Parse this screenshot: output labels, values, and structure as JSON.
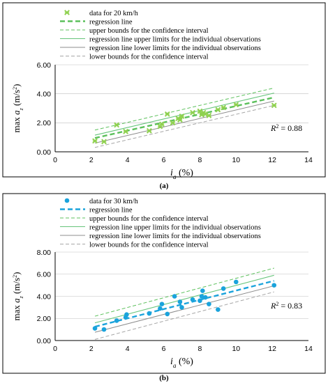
{
  "colors": {
    "green_marker": "#8fd14f",
    "green_dash": "#5cc05c",
    "green_solid": "#66c47a",
    "gray_solid": "#8c8c8c",
    "gray_dash": "#a6a6a6",
    "blue_marker": "#1aa3dc",
    "blue_dash": "#1aa3dc"
  },
  "chart_data": [
    {
      "type": "scatter",
      "caption": "(a)",
      "xlabel_main": "i",
      "xlabel_sub": "a",
      "xlabel_unit": " (%)",
      "ylabel_main": "max a",
      "ylabel_sub": "z",
      "ylabel_unit": " (m/s",
      "ylabel_sup": "2",
      "ylabel_close": ")",
      "xlim": [
        0,
        14
      ],
      "ylim": [
        0,
        6
      ],
      "xticks": [
        "0",
        "2",
        "4",
        "6",
        "8",
        "10",
        "12",
        "14"
      ],
      "yticks": [
        "0.00",
        "2.00",
        "4.00",
        "6.00"
      ],
      "r2_label": "R",
      "r2_sup": "2",
      "r2_value": " = 0.88",
      "legend": [
        "data for 20 km/h",
        "regression line",
        "upper bounds for the confidence interval",
        "regression line upper limits for the individual observations",
        "regression line lower limits for the individual observations",
        "lower bounds for the confidence interval"
      ],
      "points": [
        {
          "x": 2.2,
          "y": 0.75
        },
        {
          "x": 2.7,
          "y": 0.7
        },
        {
          "x": 3.4,
          "y": 1.85
        },
        {
          "x": 3.9,
          "y": 1.4
        },
        {
          "x": 5.2,
          "y": 1.45
        },
        {
          "x": 5.8,
          "y": 1.75
        },
        {
          "x": 5.9,
          "y": 1.9
        },
        {
          "x": 6.2,
          "y": 2.6
        },
        {
          "x": 6.5,
          "y": 2.0
        },
        {
          "x": 6.8,
          "y": 2.3
        },
        {
          "x": 6.9,
          "y": 2.2
        },
        {
          "x": 7.0,
          "y": 2.45
        },
        {
          "x": 7.6,
          "y": 2.7
        },
        {
          "x": 8.0,
          "y": 2.8
        },
        {
          "x": 8.1,
          "y": 2.55
        },
        {
          "x": 8.2,
          "y": 2.7
        },
        {
          "x": 8.3,
          "y": 2.6
        },
        {
          "x": 8.5,
          "y": 2.5
        },
        {
          "x": 9.0,
          "y": 2.9
        },
        {
          "x": 9.3,
          "y": 3.05
        },
        {
          "x": 10.0,
          "y": 3.25
        },
        {
          "x": 12.1,
          "y": 3.2
        }
      ],
      "lines": {
        "regression": [
          [
            2.2,
            0.95
          ],
          [
            12.1,
            3.75
          ]
        ],
        "confidence_upper": [
          [
            2.2,
            1.5
          ],
          [
            12.1,
            4.4
          ]
        ],
        "observation_upper": [
          [
            2.2,
            1.15
          ],
          [
            12.1,
            4.05
          ]
        ],
        "observation_lower": [
          [
            2.2,
            0.6
          ],
          [
            12.1,
            3.5
          ]
        ],
        "confidence_lower": [
          [
            2.2,
            0.3
          ],
          [
            12.1,
            3.2
          ]
        ]
      }
    },
    {
      "type": "scatter",
      "caption": "(b)",
      "xlabel_main": "i",
      "xlabel_sub": "a",
      "xlabel_unit": " (%)",
      "ylabel_main": "max a",
      "ylabel_sub": "z",
      "ylabel_unit": " (m/s",
      "ylabel_sup": "2",
      "ylabel_close": ")",
      "xlim": [
        0,
        14
      ],
      "ylim": [
        0,
        8
      ],
      "xticks": [
        "0",
        "2",
        "4",
        "6",
        "8",
        "10",
        "12",
        "14"
      ],
      "yticks": [
        "0.00",
        "2.00",
        "4.00",
        "6.00",
        "8.00"
      ],
      "r2_label": "R",
      "r2_sup": "2",
      "r2_value": " = 0.83",
      "legend": [
        "data for 30 km/h",
        "regression line",
        "upper bounds for the confidence interval",
        "regression line upper limits for the individual observations",
        "regression line lower limits for the individual observations",
        "lower bounds for the confidence interval"
      ],
      "points": [
        {
          "x": 2.2,
          "y": 1.1
        },
        {
          "x": 2.7,
          "y": 1.0
        },
        {
          "x": 3.4,
          "y": 1.8
        },
        {
          "x": 3.9,
          "y": 2.1
        },
        {
          "x": 3.95,
          "y": 2.35
        },
        {
          "x": 5.2,
          "y": 2.45
        },
        {
          "x": 5.8,
          "y": 2.9
        },
        {
          "x": 5.9,
          "y": 3.3
        },
        {
          "x": 6.2,
          "y": 2.4
        },
        {
          "x": 6.6,
          "y": 4.0
        },
        {
          "x": 6.9,
          "y": 3.5
        },
        {
          "x": 7.0,
          "y": 3.0
        },
        {
          "x": 7.6,
          "y": 3.7
        },
        {
          "x": 8.0,
          "y": 3.6
        },
        {
          "x": 8.1,
          "y": 4.0
        },
        {
          "x": 8.15,
          "y": 4.5
        },
        {
          "x": 8.3,
          "y": 3.9
        },
        {
          "x": 8.5,
          "y": 3.3
        },
        {
          "x": 9.0,
          "y": 2.8
        },
        {
          "x": 9.3,
          "y": 4.7
        },
        {
          "x": 10.0,
          "y": 5.3
        },
        {
          "x": 12.1,
          "y": 5.0
        }
      ],
      "lines": {
        "regression": [
          [
            2.2,
            1.25
          ],
          [
            12.1,
            5.4
          ]
        ],
        "confidence_upper": [
          [
            2.2,
            2.2
          ],
          [
            12.1,
            6.55
          ]
        ],
        "observation_upper": [
          [
            2.2,
            1.6
          ],
          [
            12.1,
            5.9
          ]
        ],
        "observation_lower": [
          [
            2.2,
            0.75
          ],
          [
            12.1,
            4.95
          ]
        ],
        "confidence_lower": [
          [
            2.2,
            0.1
          ],
          [
            12.1,
            4.4
          ]
        ]
      }
    }
  ]
}
